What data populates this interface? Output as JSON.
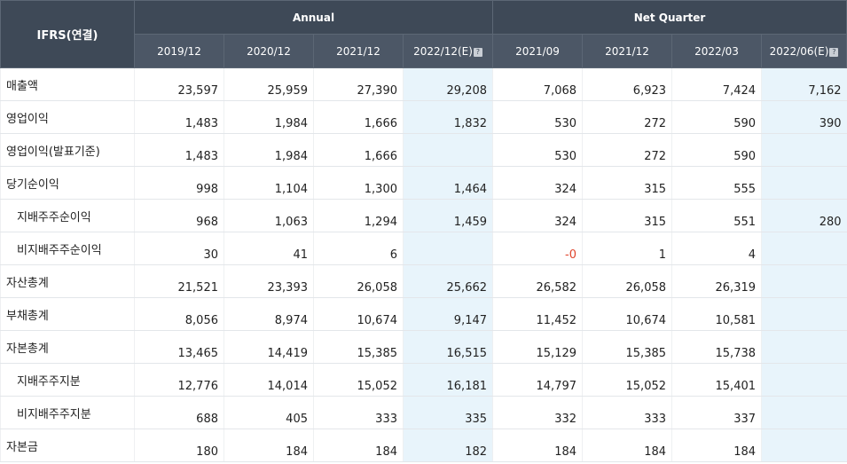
{
  "header": {
    "corner": "IFRS(연결)",
    "group_annual": "Annual",
    "group_quarter": "Net Quarter",
    "periods": [
      "2019/12",
      "2020/12",
      "2021/12",
      "2022/12(E)",
      "2021/09",
      "2021/12",
      "2022/03",
      "2022/06(E)"
    ],
    "help_icon_glyph": "?"
  },
  "rows": [
    {
      "label": "매출액",
      "values": [
        "23,597",
        "25,959",
        "27,390",
        "29,208",
        "7,068",
        "6,923",
        "7,424",
        "7,162"
      ]
    },
    {
      "label": "영업이익",
      "values": [
        "1,483",
        "1,984",
        "1,666",
        "1,832",
        "530",
        "272",
        "590",
        "390"
      ]
    },
    {
      "label": "영업이익(발표기준)",
      "values": [
        "1,483",
        "1,984",
        "1,666",
        "",
        "530",
        "272",
        "590",
        ""
      ]
    },
    {
      "label": "당기순이익",
      "values": [
        "998",
        "1,104",
        "1,300",
        "1,464",
        "324",
        "315",
        "555",
        ""
      ]
    },
    {
      "label": "지배주주순이익",
      "values": [
        "968",
        "1,063",
        "1,294",
        "1,459",
        "324",
        "315",
        "551",
        "280"
      ]
    },
    {
      "label": "비지배주주순이익",
      "values": [
        "30",
        "41",
        "6",
        "",
        "-0",
        "1",
        "4",
        ""
      ]
    },
    {
      "label": "자산총계",
      "values": [
        "21,521",
        "23,393",
        "26,058",
        "25,662",
        "26,582",
        "26,058",
        "26,319",
        ""
      ]
    },
    {
      "label": "부채총계",
      "values": [
        "8,056",
        "8,974",
        "10,674",
        "9,147",
        "11,452",
        "10,674",
        "10,581",
        ""
      ]
    },
    {
      "label": "자본총계",
      "values": [
        "13,465",
        "14,419",
        "15,385",
        "16,515",
        "15,129",
        "15,385",
        "15,738",
        ""
      ]
    },
    {
      "label": "지배주주지분",
      "values": [
        "12,776",
        "14,014",
        "15,052",
        "16,181",
        "14,797",
        "15,052",
        "15,401",
        ""
      ]
    },
    {
      "label": "비지배주주지분",
      "values": [
        "688",
        "405",
        "333",
        "335",
        "332",
        "333",
        "337",
        ""
      ]
    },
    {
      "label": "자본금",
      "values": [
        "180",
        "184",
        "184",
        "182",
        "184",
        "184",
        "184",
        ""
      ]
    }
  ],
  "colors": {
    "header_bg": "#3e4957",
    "estimate_bg": "#e8f4fb",
    "negative": "#e0452d"
  }
}
